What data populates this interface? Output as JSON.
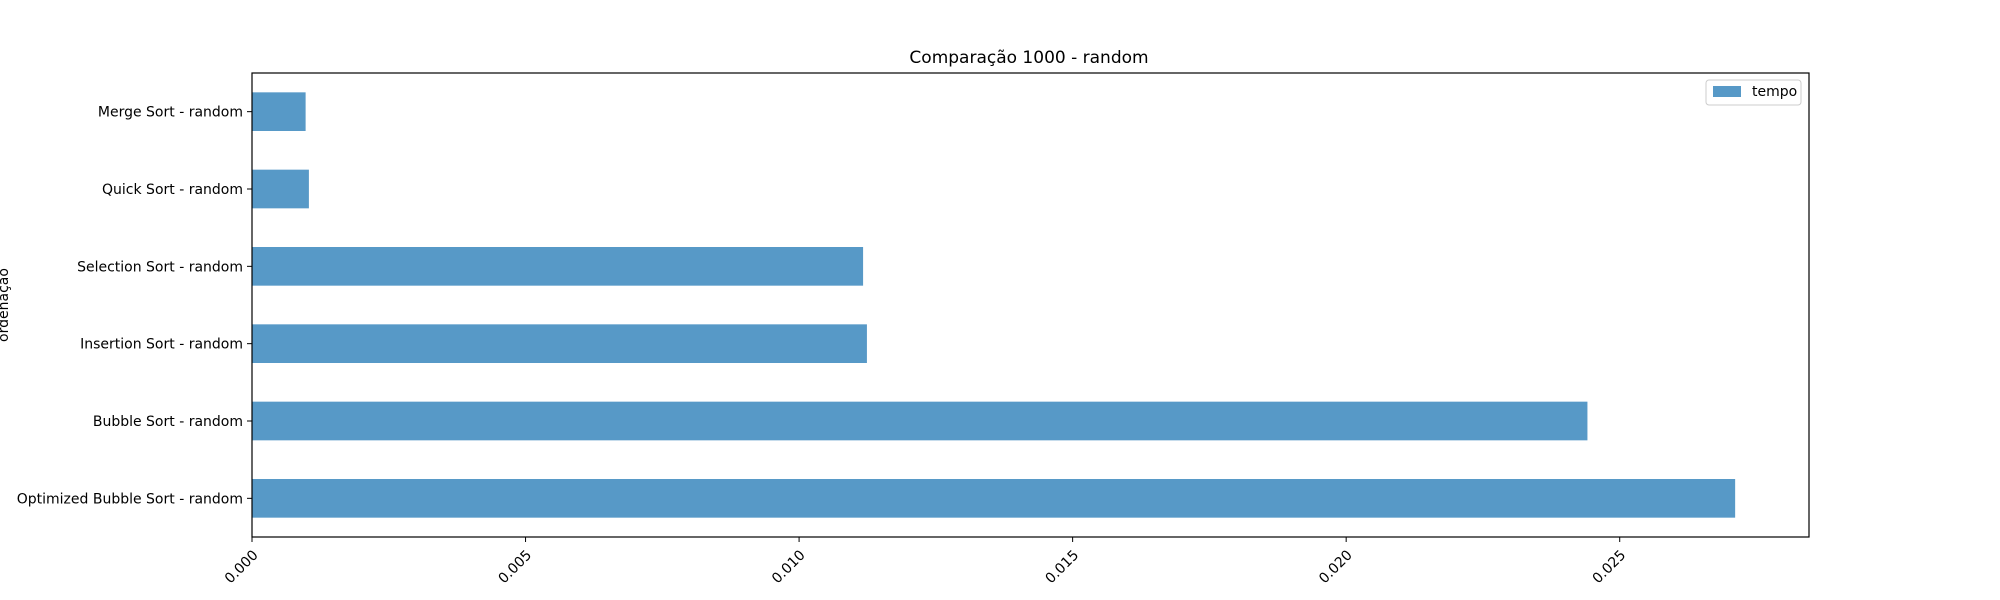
{
  "chart_data": {
    "type": "bar",
    "orientation": "horizontal",
    "title": "Comparação 1000 - random",
    "xlabel": "",
    "ylabel": "ordenação",
    "categories": [
      "Merge Sort - random",
      "Quick Sort - random",
      "Selection Sort - random",
      "Insertion Sort - random",
      "Bubble Sort - random",
      "Optimized Bubble Sort - random"
    ],
    "series": [
      {
        "name": "tempo",
        "values": [
          0.00098,
          0.00104,
          0.01117,
          0.01124,
          0.02441,
          0.02711
        ],
        "color": "#5799c7"
      }
    ],
    "xlim": [
      0,
      0.02846
    ],
    "xticks": [
      "0.000",
      "0.005",
      "0.010",
      "0.015",
      "0.020",
      "0.025"
    ],
    "xtick_values": [
      0,
      0.005,
      0.01,
      0.015,
      0.02,
      0.025
    ],
    "legend_position": "top-right",
    "grid": false
  }
}
